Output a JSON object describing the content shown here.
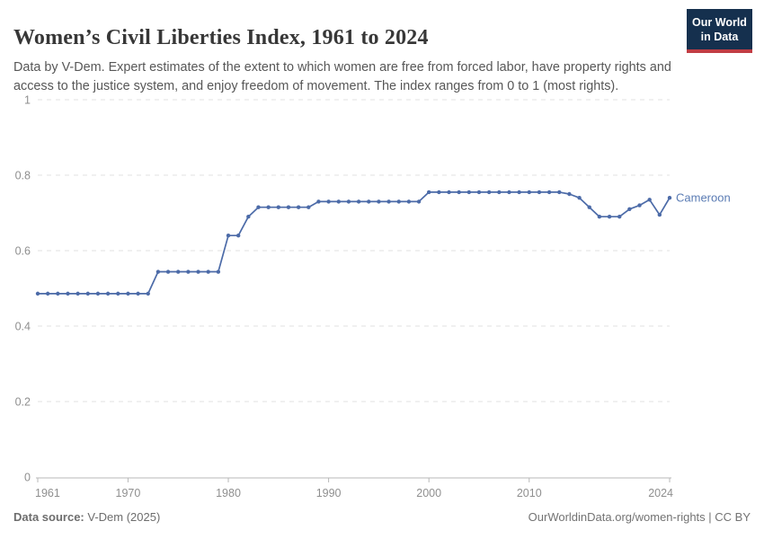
{
  "header": {
    "title": "Women’s Civil Liberties Index, 1961 to 2024",
    "subtitle": "Data by V-Dem. Expert estimates of the extent to which women are free from forced labor, have property rights and access to the justice system, and enjoy freedom of movement. The index ranges from 0 to 1 (most rights).",
    "logo": {
      "line1": "Our World",
      "line2": "in Data",
      "bg_color": "#15304e",
      "accent_color": "#c13d44"
    }
  },
  "chart_data": {
    "type": "line",
    "title": "Women’s Civil Liberties Index, 1961 to 2024",
    "xlabel": "",
    "ylabel": "",
    "xlim": [
      1961,
      2024
    ],
    "ylim": [
      0,
      1
    ],
    "x_ticks": [
      1961,
      1970,
      1980,
      1990,
      2000,
      2010,
      2024
    ],
    "y_ticks": [
      "0",
      "0.2",
      "0.4",
      "0.6",
      "0.8",
      "1"
    ],
    "grid": "horizontal-dashed",
    "legend_position": "end-of-line-label",
    "grid_color": "#e0e0e0",
    "axis_color": "#b8b8b8",
    "tick_label_color": "#8f8f8f",
    "x": [
      1961,
      1962,
      1963,
      1964,
      1965,
      1966,
      1967,
      1968,
      1969,
      1970,
      1971,
      1972,
      1973,
      1974,
      1975,
      1976,
      1977,
      1978,
      1979,
      1980,
      1981,
      1982,
      1983,
      1984,
      1985,
      1986,
      1987,
      1988,
      1989,
      1990,
      1991,
      1992,
      1993,
      1994,
      1995,
      1996,
      1997,
      1998,
      1999,
      2000,
      2001,
      2002,
      2003,
      2004,
      2005,
      2006,
      2007,
      2008,
      2009,
      2010,
      2011,
      2012,
      2013,
      2014,
      2015,
      2016,
      2017,
      2018,
      2019,
      2020,
      2021,
      2022,
      2023,
      2024
    ],
    "series": [
      {
        "name": "Cameroon",
        "color": "#4c6ba8",
        "label_color": "#5b7cb4",
        "values": [
          0.486,
          0.486,
          0.486,
          0.486,
          0.486,
          0.486,
          0.486,
          0.486,
          0.486,
          0.486,
          0.486,
          0.486,
          0.544,
          0.544,
          0.544,
          0.544,
          0.544,
          0.544,
          0.544,
          0.64,
          0.64,
          0.69,
          0.715,
          0.715,
          0.715,
          0.715,
          0.715,
          0.715,
          0.73,
          0.73,
          0.73,
          0.73,
          0.73,
          0.73,
          0.73,
          0.73,
          0.73,
          0.73,
          0.73,
          0.755,
          0.755,
          0.755,
          0.755,
          0.755,
          0.755,
          0.755,
          0.755,
          0.755,
          0.755,
          0.755,
          0.755,
          0.755,
          0.755,
          0.75,
          0.74,
          0.715,
          0.69,
          0.69,
          0.69,
          0.71,
          0.72,
          0.735,
          0.695,
          0.74
        ]
      }
    ]
  },
  "footer": {
    "source_label": "Data source:",
    "source_value": " V-Dem (2025)",
    "credit": "OurWorldinData.org/women-rights | CC BY"
  }
}
